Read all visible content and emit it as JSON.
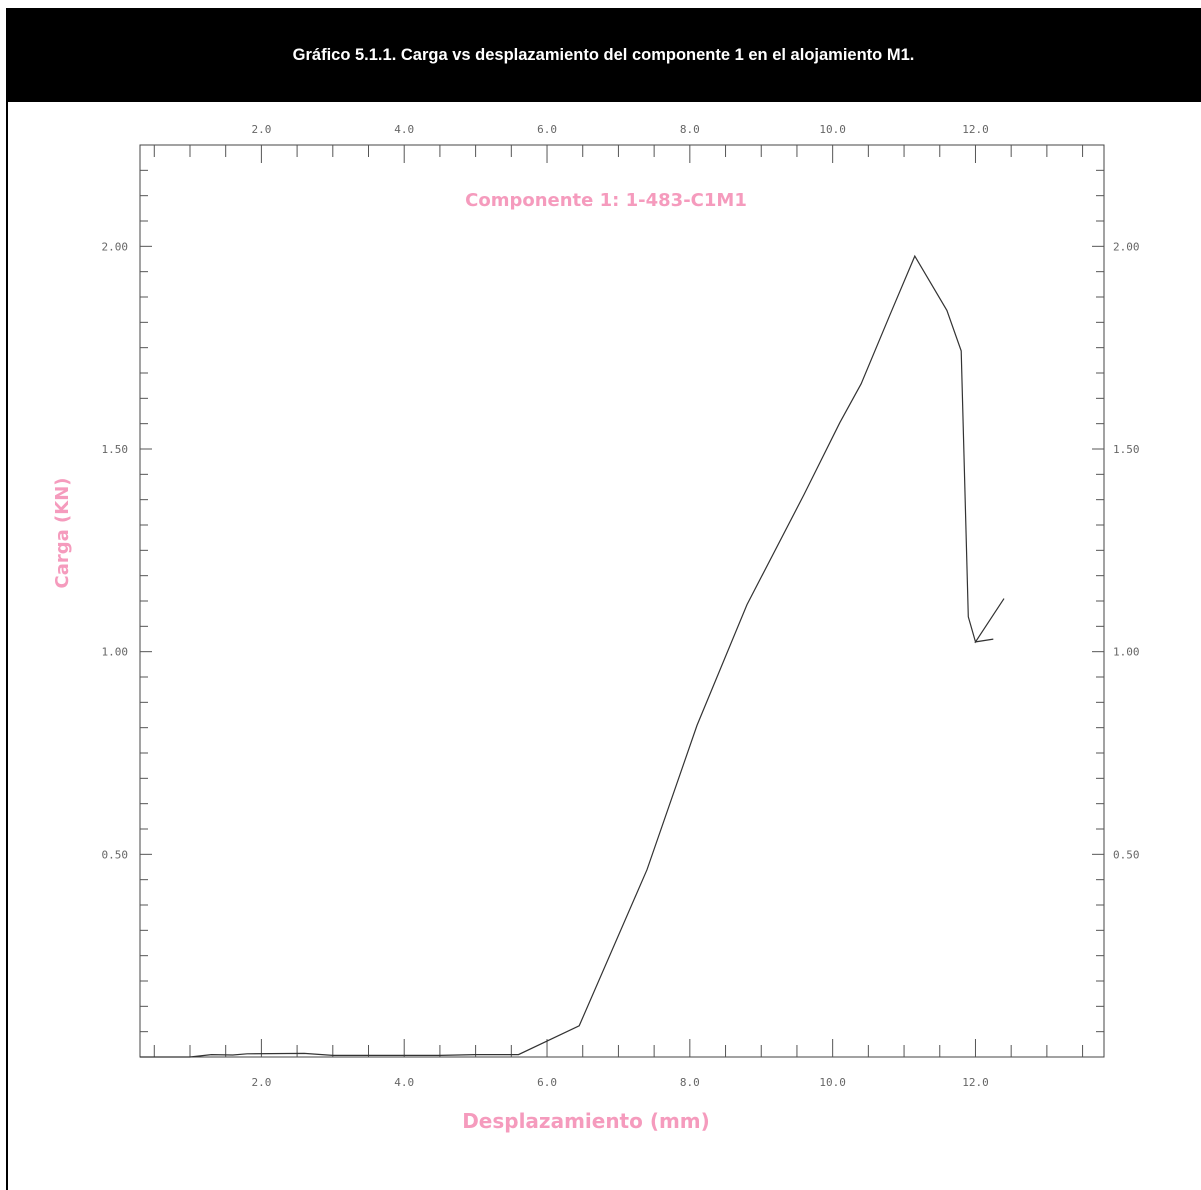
{
  "header": {
    "title": "Gráfico 5.1.1. Carga vs desplazamiento del componente 1 en el alojamiento M1."
  },
  "colors": {
    "header_bg": "#000000",
    "annotation": "#f59bbd",
    "curve": "#333333"
  },
  "chart_data": {
    "type": "line",
    "title": "Componente 1: 1-483-C1M1",
    "xlabel": "Desplazamiento (mm)",
    "ylabel": "Carga (KN)",
    "xlim": [
      0.3,
      13.8
    ],
    "ylim": [
      0.0,
      2.25
    ],
    "x_ticks": [
      "2.0",
      "4.0",
      "6.0",
      "8.0",
      "10.0",
      "12.0"
    ],
    "y_ticks": [
      "0.50",
      "1.00",
      "1.50",
      "2.00"
    ],
    "grid": false,
    "series": [
      {
        "x": [
          0.3,
          1.0,
          1.3,
          1.6,
          1.8,
          2.6,
          3.0,
          4.5,
          5.0,
          5.6,
          6.45,
          7.4,
          8.1,
          8.8,
          9.6,
          10.1,
          10.4,
          10.8,
          11.15,
          11.6,
          11.8,
          11.9,
          12.0,
          12.4,
          12.0,
          12.25
        ],
        "y": [
          0.0,
          0.0,
          0.006,
          0.005,
          0.008,
          0.009,
          0.004,
          0.004,
          0.006,
          0.006,
          0.077,
          0.462,
          0.818,
          1.116,
          1.388,
          1.565,
          1.661,
          1.83,
          1.976,
          1.842,
          1.742,
          1.086,
          1.024,
          1.131,
          1.024,
          1.031
        ]
      }
    ]
  }
}
